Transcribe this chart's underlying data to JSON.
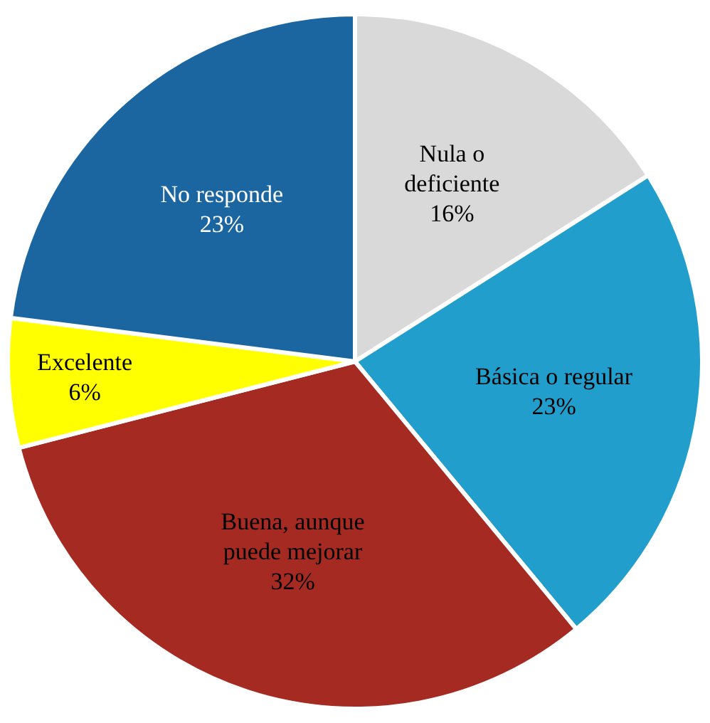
{
  "chart_data": {
    "type": "pie",
    "categories": [
      "Nula o deficiente",
      "Básica o regular",
      "Buena, aunque puede mejorar",
      "Excelente",
      "No responde"
    ],
    "values": [
      16,
      23,
      32,
      6,
      23
    ],
    "colors": [
      "#d9d9d9",
      "#219ecb",
      "#a52a22",
      "#ffff00",
      "#1b66a1"
    ],
    "value_labels": [
      "16%",
      "23%",
      "32%",
      "6%",
      "23%"
    ],
    "legend": false
  }
}
